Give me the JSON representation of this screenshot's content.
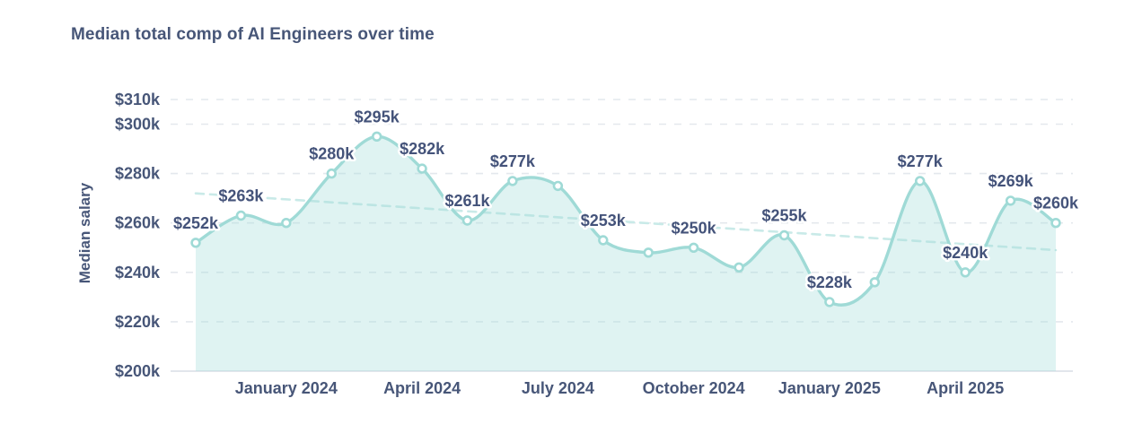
{
  "title": "Median total comp of AI Engineers over time",
  "chart_data": {
    "type": "area",
    "title": "Median total comp of AI Engineers over time",
    "xlabel": "",
    "ylabel": "Median salary",
    "ylim": [
      200,
      310
    ],
    "grid": "horizontal-dashed",
    "legend": "none",
    "y_axis_ticks": [
      {
        "value": 310,
        "label": "$310k"
      },
      {
        "value": 300,
        "label": "$300k"
      },
      {
        "value": 280,
        "label": "$280k"
      },
      {
        "value": 260,
        "label": "$260k"
      },
      {
        "value": 240,
        "label": "$240k"
      },
      {
        "value": 220,
        "label": "$220k"
      },
      {
        "value": 200,
        "label": "$200k"
      }
    ],
    "x_axis_ticks": [
      {
        "index": 2,
        "label": "January 2024"
      },
      {
        "index": 5,
        "label": "April 2024"
      },
      {
        "index": 8,
        "label": "July 2024"
      },
      {
        "index": 11,
        "label": "October 2024"
      },
      {
        "index": 14,
        "label": "January 2025"
      },
      {
        "index": 17,
        "label": "April 2025"
      }
    ],
    "points": [
      {
        "month": "Nov 2023",
        "value": 252,
        "label": "$252k"
      },
      {
        "month": "Dec 2023",
        "value": 263,
        "label": "$263k"
      },
      {
        "month": "Jan 2024",
        "value": 260,
        "label": null
      },
      {
        "month": "Feb 2024",
        "value": 280,
        "label": "$280k"
      },
      {
        "month": "Mar 2024",
        "value": 295,
        "label": "$295k"
      },
      {
        "month": "Apr 2024",
        "value": 282,
        "label": "$282k"
      },
      {
        "month": "May 2024",
        "value": 261,
        "label": "$261k"
      },
      {
        "month": "Jun 2024",
        "value": 277,
        "label": "$277k"
      },
      {
        "month": "Jul 2024",
        "value": 275,
        "label": null
      },
      {
        "month": "Aug 2024",
        "value": 253,
        "label": "$253k"
      },
      {
        "month": "Sep 2024",
        "value": 248,
        "label": null
      },
      {
        "month": "Oct 2024",
        "value": 250,
        "label": "$250k"
      },
      {
        "month": "Nov 2024",
        "value": 242,
        "label": null
      },
      {
        "month": "Dec 2024",
        "value": 255,
        "label": "$255k"
      },
      {
        "month": "Jan 2025",
        "value": 228,
        "label": "$228k"
      },
      {
        "month": "Feb 2025",
        "value": 236,
        "label": null
      },
      {
        "month": "Mar 2025",
        "value": 277,
        "label": "$277k"
      },
      {
        "month": "Apr 2025",
        "value": 240,
        "label": "$240k"
      },
      {
        "month": "May 2025",
        "value": 269,
        "label": "$269k"
      },
      {
        "month": "Jun 2025",
        "value": 260,
        "label": "$260k"
      }
    ],
    "trend": {
      "style": "dashed",
      "start_value": 272,
      "end_value": 249
    },
    "colors": {
      "line": "#9fdad6",
      "marker_stroke": "#9fdad6",
      "marker_fill": "#ffffff",
      "area": "rgba(164,221,217,0.35)",
      "trend": "#c9eae8",
      "grid": "#e4e8ed",
      "baseline": "#d9dee5",
      "text": "#475678"
    }
  }
}
